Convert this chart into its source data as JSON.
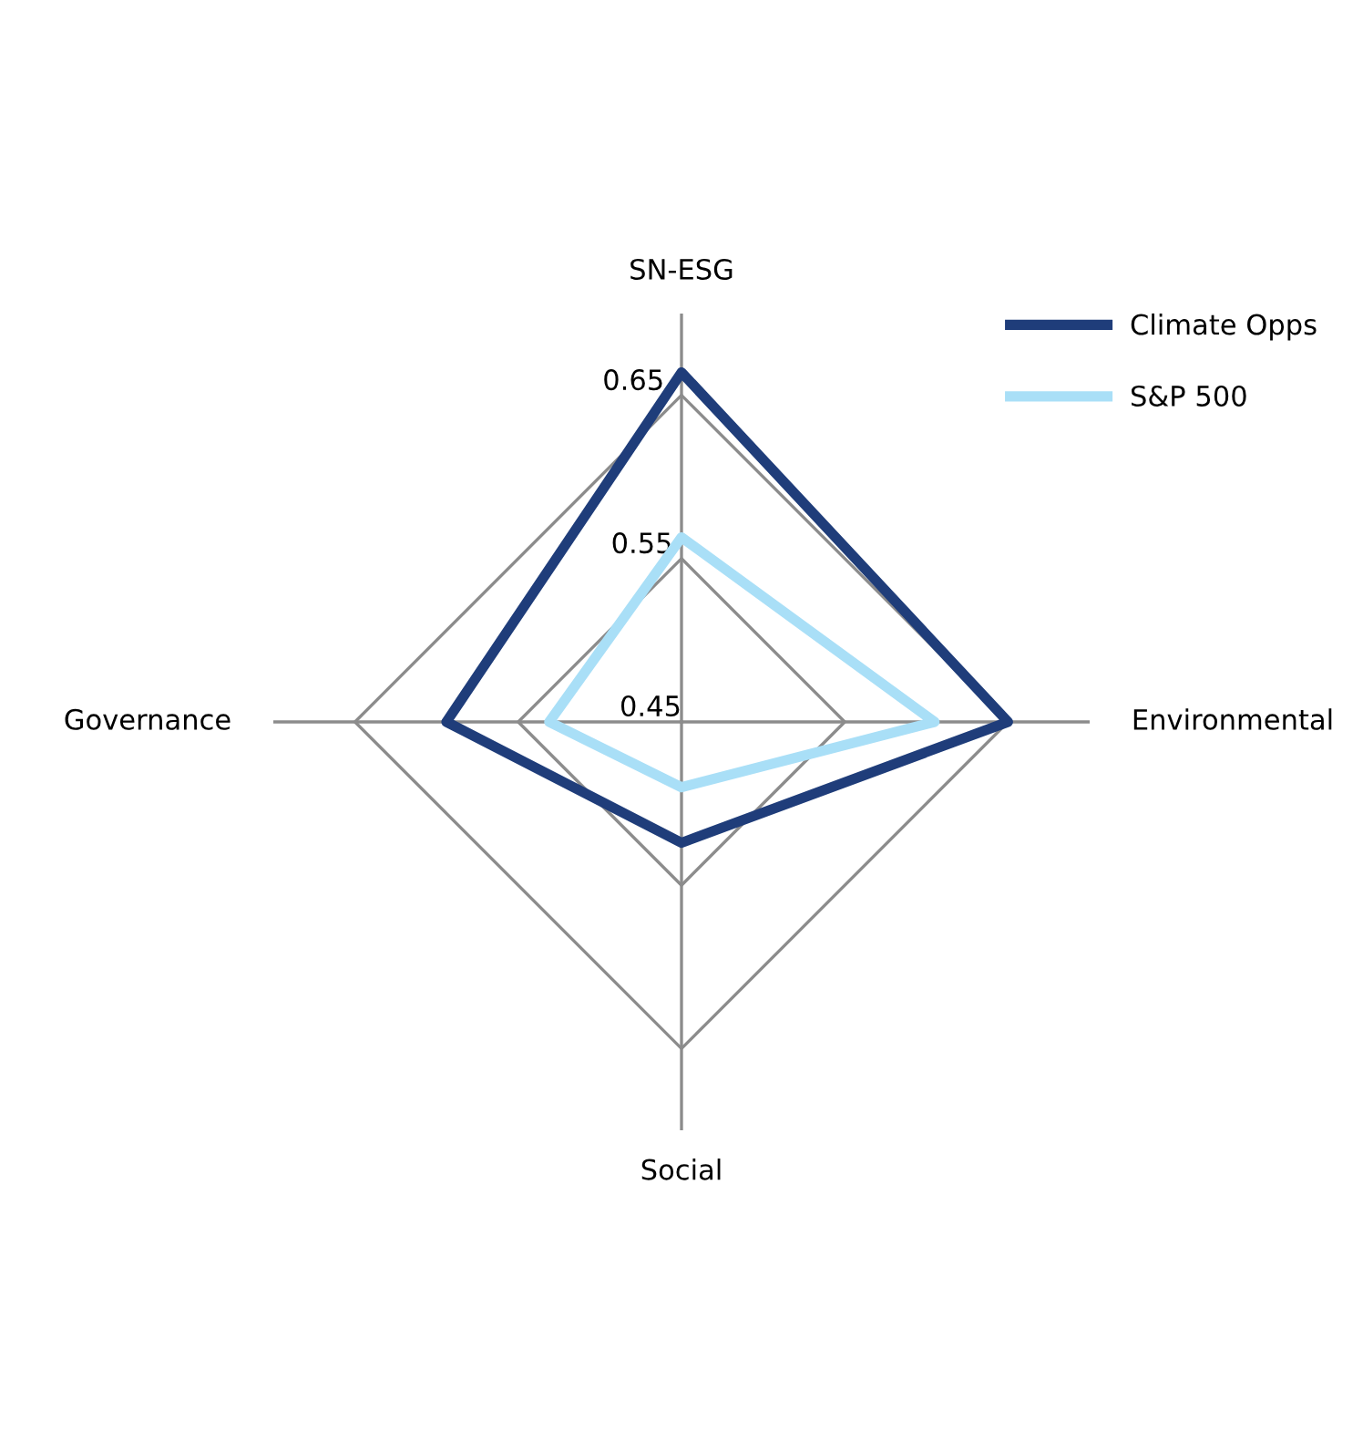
{
  "chart_data": {
    "type": "radar",
    "categories": [
      "SN-ESG",
      "Environmental",
      "Social",
      "Governance"
    ],
    "series": [
      {
        "name": "Climate Opps",
        "color": "#1f3d7a",
        "values": [
          0.664,
          0.65,
          0.524,
          0.594
        ]
      },
      {
        "name": "S&P 500",
        "color": "#a9dff7",
        "values": [
          0.563,
          0.605,
          0.49,
          0.531
        ]
      }
    ],
    "ylim": [
      0.45,
      0.7
    ],
    "yticks": [
      0.45,
      0.55,
      0.65
    ],
    "legend": "top right"
  }
}
